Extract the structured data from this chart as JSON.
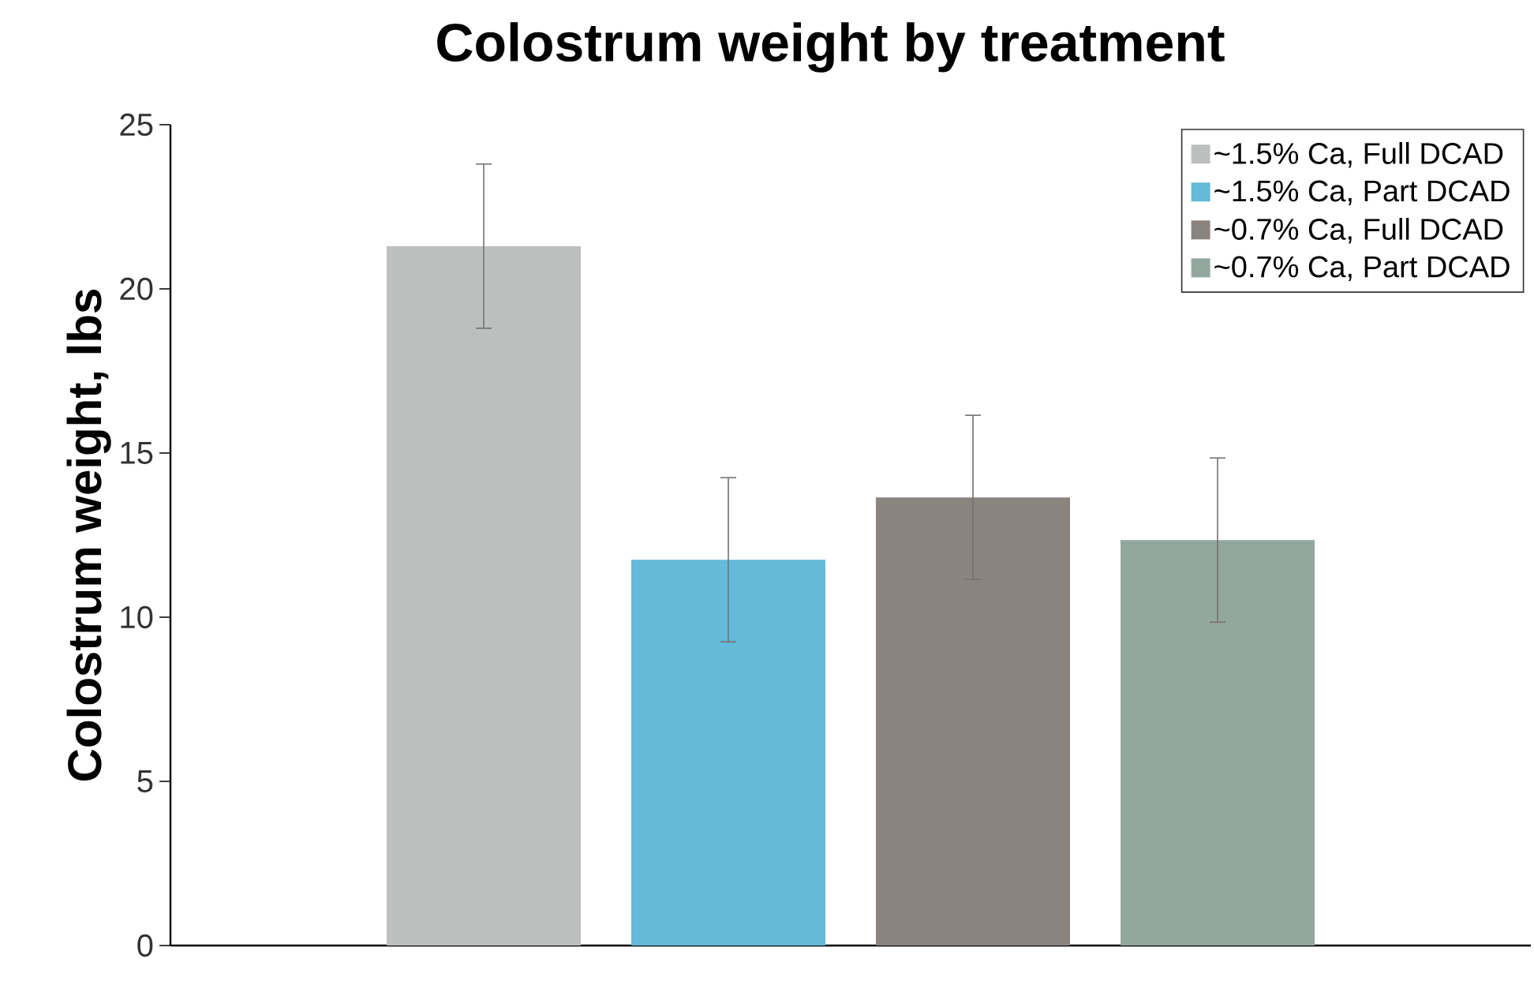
{
  "chart_data": {
    "type": "bar",
    "title": "Colostrum weight by treatment",
    "ylabel": "Colostrum weight, lbs",
    "categories": [
      null
    ],
    "series": [
      {
        "name": "~1.5% Ca, Full DCAD",
        "color": "#bdbfbe",
        "values": [
          21.3
        ],
        "errors": [
          2.5
        ]
      },
      {
        "name": "~1.5% Ca, Part DCAD",
        "color": "#63bad9",
        "values": [
          11.75
        ],
        "errors": [
          2.5
        ]
      },
      {
        "name": "~0.7% Ca, Full DCAD",
        "color": "#8b837e",
        "values": [
          13.65
        ],
        "errors": [
          2.5
        ]
      },
      {
        "name": "~0.7% Ca, Part DCAD",
        "color": "#92a79d",
        "values": [
          12.35
        ],
        "errors": [
          2.5
        ]
      }
    ],
    "ylim": [
      0,
      25
    ],
    "yticks": [
      0,
      5,
      10,
      15,
      20,
      25
    ],
    "grid": false,
    "legend": "top right"
  }
}
